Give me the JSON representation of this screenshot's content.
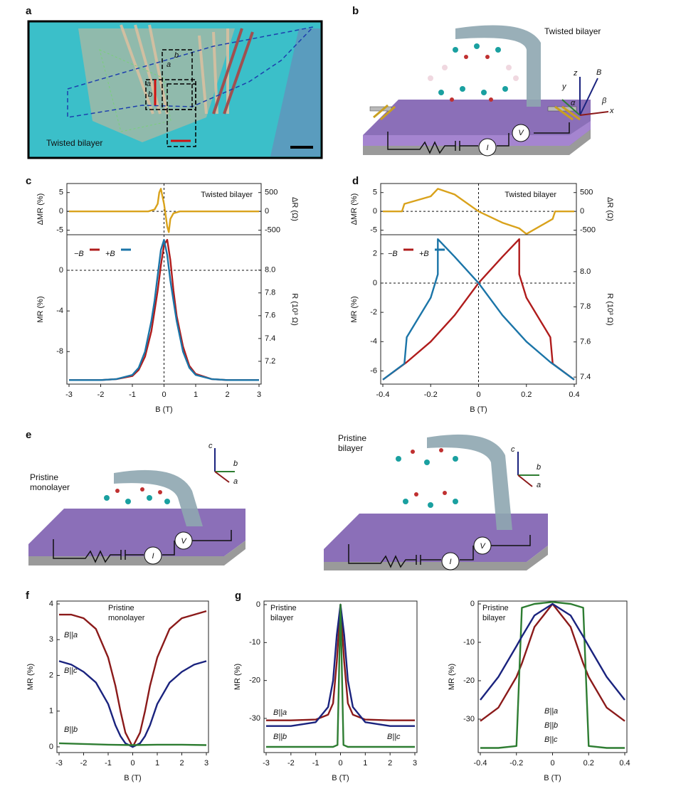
{
  "panel_labels": [
    "a",
    "b",
    "c",
    "d",
    "e",
    "f",
    "g"
  ],
  "panel_a": {
    "caption": "Twisted bilayer",
    "axis_labels": [
      "b",
      "a",
      "a",
      "b"
    ]
  },
  "panel_b": {
    "caption": "Twisted bilayer",
    "axes": [
      "z",
      "B",
      "y",
      "β",
      "α",
      "x"
    ],
    "circuit": [
      "V",
      "I"
    ]
  },
  "panel_e": {
    "left_caption": "Pristine monolayer",
    "right_caption": "Pristine bilayer",
    "left_axes": [
      "c",
      "b",
      "a"
    ],
    "right_axes": [
      "c",
      "b",
      "a"
    ],
    "left_circuit": [
      "V",
      "I"
    ],
    "right_circuit": [
      "V",
      "I"
    ]
  },
  "chart_data": [
    {
      "type": "line",
      "title": "Twisted bilayer",
      "ylabel": "ΔMR (%)",
      "y2label": "ΔR (Ω)",
      "xlim": [
        -3,
        3
      ],
      "ylim": [
        -6.2,
        7.4
      ],
      "yticks": [
        -5,
        0,
        5
      ],
      "y2lim": [
        -620,
        740
      ],
      "y2ticks": [
        -500,
        0,
        500
      ],
      "zero_lines": true,
      "series": [
        {
          "color": "#d9a21b",
          "x": [
            -3,
            -1,
            -0.5,
            -0.3,
            -0.2,
            -0.15,
            -0.1,
            0,
            0.1,
            0.15,
            0.2,
            0.3,
            0.5,
            1,
            3
          ],
          "values": [
            0,
            0,
            0,
            0.5,
            2,
            5,
            6,
            2,
            -4,
            -5.5,
            -2,
            -0.5,
            0,
            0,
            0
          ]
        }
      ]
    },
    {
      "type": "line",
      "xlabel": "B (T)",
      "ylabel": "MR (%)",
      "y2label": "R (10³ Ω)",
      "xlim": [
        -3,
        3
      ],
      "xticks": [
        -3,
        -2,
        -1,
        0,
        1,
        2,
        3
      ],
      "ylim": [
        -11.2,
        3.5
      ],
      "yticks": [
        -8,
        -4,
        0
      ],
      "y2lim": [
        7.0,
        8.31
      ],
      "y2ticks": [
        7.2,
        7.4,
        7.6,
        7.8,
        {
          "value": 8,
          "label": "8.0"
        }
      ],
      "zero_lines": true,
      "series": [
        {
          "name": "−B",
          "color": "#b01c1c",
          "x": [
            -3,
            -2,
            -1.5,
            -1,
            -0.8,
            -0.6,
            -0.4,
            -0.3,
            -0.2,
            -0.1,
            0,
            0.1,
            0.2,
            0.3,
            0.4,
            0.6,
            0.8,
            1,
            1.5,
            2,
            3
          ],
          "values": [
            -10.8,
            -10.8,
            -10.7,
            -10.4,
            -9.8,
            -8.5,
            -6,
            -4,
            -2,
            0.5,
            2.5,
            3,
            1,
            -2,
            -4.5,
            -7.5,
            -9.4,
            -10.2,
            -10.7,
            -10.8,
            -10.8
          ]
        },
        {
          "name": "+B",
          "color": "#1b75a8",
          "x": [
            -3,
            -2,
            -1.5,
            -1,
            -0.8,
            -0.6,
            -0.4,
            -0.3,
            -0.2,
            -0.1,
            0,
            0.1,
            0.2,
            0.3,
            0.4,
            0.6,
            0.8,
            1,
            1.5,
            2,
            3
          ],
          "values": [
            -10.8,
            -10.8,
            -10.7,
            -10.3,
            -9.6,
            -8,
            -5,
            -3,
            -0.5,
            2,
            3,
            1.5,
            -1,
            -3,
            -5,
            -8,
            -9.6,
            -10.3,
            -10.7,
            -10.8,
            -10.8
          ]
        }
      ]
    },
    {
      "type": "line",
      "title": "Twisted bilayer",
      "ylabel": "ΔMR (%)",
      "y2label": "ΔR (Ω)",
      "xlim": [
        -0.4,
        0.4
      ],
      "ylim": [
        -6.2,
        7.4
      ],
      "yticks": [
        -5,
        0,
        5
      ],
      "y2lim": [
        -620,
        740
      ],
      "y2ticks": [
        -500,
        0,
        500
      ],
      "zero_lines": true,
      "series": [
        {
          "color": "#d9a21b",
          "x": [
            -0.4,
            -0.32,
            -0.31,
            -0.2,
            -0.17,
            -0.1,
            0,
            0.1,
            0.17,
            0.2,
            0.31,
            0.32,
            0.4
          ],
          "values": [
            0,
            0,
            2,
            4,
            6,
            4.5,
            0,
            -3,
            -4.5,
            -6,
            -2,
            0,
            0
          ]
        }
      ]
    },
    {
      "type": "line",
      "xlabel": "B (T)",
      "ylabel": "MR (%)",
      "y2label": "R (10³ Ω)",
      "xlim": [
        -0.4,
        0.4
      ],
      "xticks": [
        -0.4,
        -0.2,
        0,
        0.2,
        0.4
      ],
      "ylim": [
        -6.9,
        3.3
      ],
      "yticks": [
        -6,
        -4,
        -2,
        0,
        2
      ],
      "y2lim": [
        7.36,
        8.21
      ],
      "y2ticks": [
        7.4,
        7.6,
        7.8,
        {
          "value": 8,
          "label": "8.0"
        }
      ],
      "zero_lines": true,
      "series": [
        {
          "name": "−B",
          "color": "#b01c1c",
          "x": [
            -0.4,
            -0.3,
            -0.2,
            -0.1,
            0,
            0.1,
            0.17,
            0.17,
            0.2,
            0.3,
            0.31,
            0.4
          ],
          "values": [
            -6.6,
            -5.4,
            -4,
            -2.2,
            0,
            1.8,
            3,
            0.6,
            -1,
            -3.7,
            -5.5,
            -6.6
          ]
        },
        {
          "name": "+B",
          "color": "#1b75a8",
          "x": [
            -0.4,
            -0.31,
            -0.3,
            -0.2,
            -0.17,
            -0.17,
            -0.1,
            0,
            0.1,
            0.2,
            0.3,
            0.4
          ],
          "values": [
            -6.6,
            -5.5,
            -3.7,
            -1,
            0.6,
            3,
            1.8,
            0,
            -2.2,
            -4,
            -5.4,
            -6.6
          ]
        }
      ]
    },
    {
      "type": "line",
      "title": "Pristine monolayer",
      "xlabel": "B (T)",
      "ylabel": "MR (%)",
      "xlim": [
        -3,
        3
      ],
      "xticks": [
        -3,
        -2,
        -1,
        0,
        1,
        2,
        3
      ],
      "ylim": [
        -0.16,
        4.08
      ],
      "yticks": [
        0,
        1,
        2,
        3,
        4
      ],
      "series": [
        {
          "name": "B||a",
          "color": "#8b1a1a",
          "x": [
            -3,
            -2.5,
            -2,
            -1.5,
            -1,
            -0.7,
            -0.5,
            -0.3,
            0,
            0.3,
            0.5,
            0.7,
            1,
            1.5,
            2,
            2.5,
            3
          ],
          "values": [
            3.7,
            3.7,
            3.6,
            3.3,
            2.5,
            1.7,
            1.0,
            0.4,
            0,
            0.4,
            1.0,
            1.7,
            2.5,
            3.3,
            3.6,
            3.7,
            3.8
          ]
        },
        {
          "name": "B||c",
          "color": "#1a237e",
          "x": [
            -3,
            -2.5,
            -2,
            -1.5,
            -1,
            -0.7,
            -0.5,
            -0.3,
            0,
            0.3,
            0.5,
            0.7,
            1,
            1.5,
            2,
            2.5,
            3
          ],
          "values": [
            2.4,
            2.3,
            2.1,
            1.8,
            1.2,
            0.6,
            0.3,
            0.1,
            0,
            0.1,
            0.3,
            0.6,
            1.2,
            1.8,
            2.1,
            2.3,
            2.4
          ]
        },
        {
          "name": "B||b",
          "color": "#2e7d32",
          "x": [
            -3,
            -2,
            -1,
            0,
            1,
            2,
            3
          ],
          "values": [
            0.1,
            0.08,
            0.06,
            0.05,
            0.06,
            0.06,
            0.05
          ]
        }
      ]
    },
    {
      "type": "line",
      "title": "Pristine bilayer",
      "xlabel": "B (T)",
      "ylabel": "MR (%)",
      "xlim": [
        -3,
        3
      ],
      "xticks": [
        -3,
        -2,
        -1,
        0,
        1,
        2,
        3
      ],
      "ylim": [
        -39,
        0.94
      ],
      "yticks": [
        -30,
        -20,
        -10,
        0
      ],
      "series": [
        {
          "name": "B||a",
          "color": "#8b1a1a",
          "x": [
            -3,
            -2,
            -1,
            -0.5,
            -0.3,
            -0.15,
            0,
            0.15,
            0.3,
            0.5,
            1,
            2,
            3
          ],
          "values": [
            -30.5,
            -30.5,
            -30.3,
            -29,
            -26,
            -15,
            0,
            -15,
            -26,
            -29,
            -30.3,
            -30.5,
            -30.5
          ]
        },
        {
          "name": "B||c",
          "color": "#1a237e",
          "x": [
            -3,
            -2,
            -1,
            -0.5,
            -0.3,
            -0.15,
            0,
            0.15,
            0.3,
            0.5,
            1,
            2,
            3
          ],
          "values": [
            -32,
            -32,
            -31,
            -27,
            -20,
            -8,
            0,
            -8,
            -20,
            -27,
            -31,
            -32,
            -32
          ]
        },
        {
          "name": "B||b",
          "color": "#2e7d32",
          "x": [
            -3,
            -2,
            -1,
            -0.3,
            -0.12,
            0,
            0.12,
            0.3,
            1,
            2,
            3
          ],
          "values": [
            -37.5,
            -37.5,
            -37.5,
            -37.5,
            -37,
            0,
            -37,
            -37.5,
            -37.5,
            -37.5,
            -37.5
          ]
        }
      ]
    },
    {
      "type": "line",
      "title": "Pristine bilayer",
      "xlabel": "B (T)",
      "ylabel": "MR (%)",
      "xlim": [
        -0.4,
        0.4
      ],
      "xticks": [
        -0.4,
        -0.2,
        0,
        0.2,
        0.4
      ],
      "ylim": [
        -38.7,
        0.74
      ],
      "yticks": [
        -30,
        -20,
        -10,
        0
      ],
      "series": [
        {
          "name": "B||a",
          "color": "#8b1a1a",
          "x": [
            -0.4,
            -0.3,
            -0.2,
            -0.17,
            -0.1,
            0,
            0.1,
            0.17,
            0.2,
            0.3,
            0.4
          ],
          "values": [
            -30.5,
            -27,
            -19,
            -15.5,
            -6,
            0,
            -6,
            -15.5,
            -19,
            -27,
            -30.5
          ]
        },
        {
          "name": "B||b",
          "color": "#2e7d32",
          "x": [
            -0.4,
            -0.3,
            -0.2,
            -0.17,
            -0.1,
            0,
            0.1,
            0.17,
            0.2,
            0.3,
            0.4
          ],
          "values": [
            -37.5,
            -37.5,
            -37,
            -1,
            0,
            0.5,
            0,
            -1,
            -37,
            -37.5,
            -37.5
          ]
        },
        {
          "name": "B||c",
          "color": "#1a237e",
          "x": [
            -0.4,
            -0.3,
            -0.2,
            -0.17,
            -0.1,
            0,
            0.1,
            0.17,
            0.2,
            0.3,
            0.4
          ],
          "values": [
            -25,
            -19,
            -11,
            -8.5,
            -3,
            0,
            -3,
            -8.5,
            -11,
            -19,
            -25
          ]
        }
      ]
    }
  ]
}
